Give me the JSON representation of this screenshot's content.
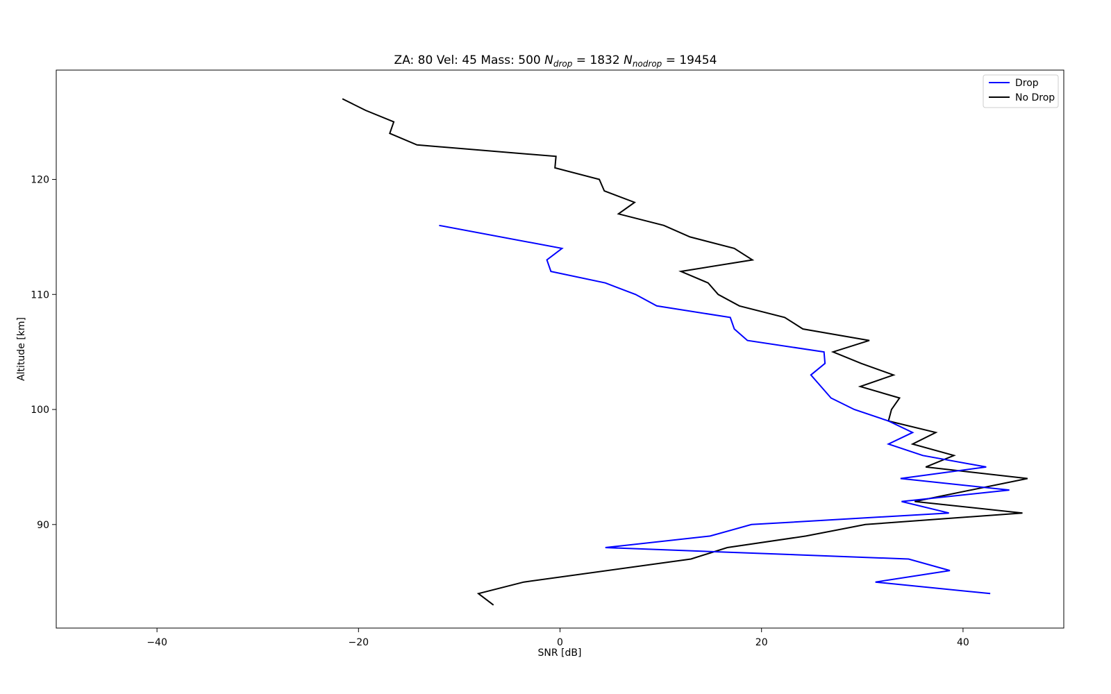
{
  "chart_data": {
    "type": "line",
    "title": {
      "za_label": "ZA: 80 Vel: 45 Mass: 500 ",
      "n_symbol": "N",
      "drop_sub": "drop",
      "drop_eq": " = 1832 ",
      "nodrop_sub": "nodrop",
      "nodrop_eq": " = 19454"
    },
    "xlabel": "SNR [dB]",
    "ylabel": "Altitude [km]",
    "xlim": [
      -50,
      50
    ],
    "ylim": [
      81,
      129.5
    ],
    "xticks": [
      -40,
      -20,
      0,
      20,
      40
    ],
    "xtick_labels": [
      "−40",
      "−20",
      "0",
      "20",
      "40"
    ],
    "yticks": [
      90,
      100,
      110,
      120
    ],
    "ytick_labels": [
      "90",
      "100",
      "110",
      "120"
    ],
    "grid": false,
    "legend_position": "top-right",
    "series": [
      {
        "name": "Drop",
        "color": "#0000ff",
        "x": [
          -12.0,
          0.2,
          -1.3,
          -0.9,
          4.5,
          7.5,
          9.6,
          16.9,
          17.3,
          18.6,
          26.2,
          26.3,
          24.9,
          26.9,
          29.2,
          32.6,
          35.0,
          32.6,
          36.0,
          42.3,
          33.8,
          44.6,
          33.9,
          38.6,
          19.0,
          14.9,
          4.5,
          34.6,
          38.7,
          31.3,
          42.7
        ],
        "y": [
          116,
          114,
          113,
          112,
          111,
          110,
          109,
          108,
          107,
          106,
          105,
          104,
          103,
          101,
          100,
          99,
          98,
          97,
          96,
          95,
          94,
          93,
          92,
          91,
          90,
          89,
          88,
          87,
          86,
          85,
          84
        ]
      },
      {
        "name": "No Drop",
        "color": "#000000",
        "x": [
          -21.6,
          -19.3,
          -16.5,
          -16.9,
          -14.2,
          -0.4,
          -0.5,
          3.9,
          4.4,
          7.4,
          5.8,
          10.3,
          12.9,
          17.3,
          19.1,
          12.0,
          14.7,
          15.7,
          17.8,
          22.3,
          24.1,
          30.7,
          27.1,
          29.9,
          33.1,
          29.8,
          33.7,
          32.9,
          32.6,
          37.3,
          35.0,
          39.1,
          36.3,
          46.4,
          35.2,
          45.9,
          30.3,
          24.4,
          16.6,
          13.0,
          -3.6,
          -8.1,
          -6.6
        ],
        "y": [
          127,
          126,
          125,
          124,
          123,
          122,
          121,
          120,
          119,
          118,
          117,
          116,
          115,
          114,
          113,
          112,
          111,
          110,
          109,
          108,
          107,
          106,
          105,
          104,
          103,
          102,
          101,
          100,
          99,
          98,
          97,
          96,
          95,
          94,
          92,
          91,
          90,
          89,
          88,
          87,
          85,
          84,
          83
        ]
      }
    ]
  }
}
